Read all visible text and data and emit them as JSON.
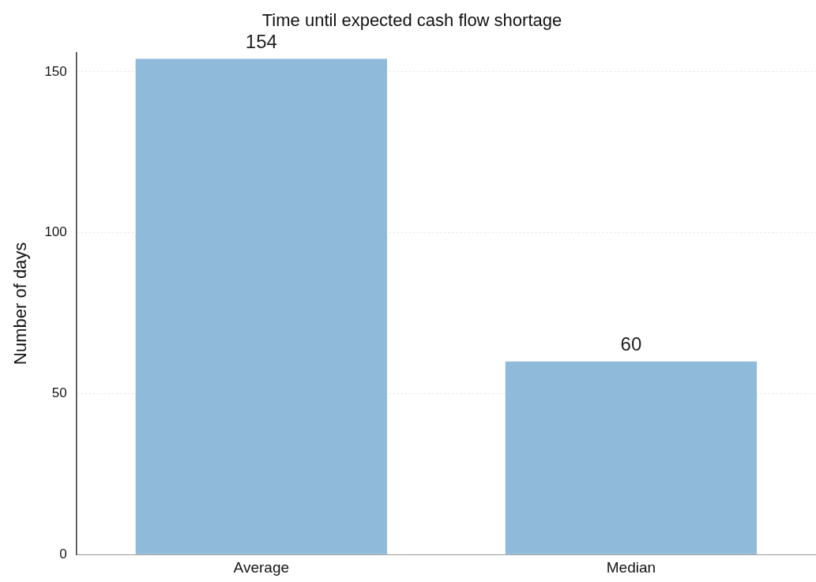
{
  "chart_data": {
    "type": "bar",
    "title": "Time until expected cash flow shortage",
    "ylabel": "Number of days",
    "categories": [
      "Average",
      "Median"
    ],
    "values": [
      154,
      60
    ],
    "color": "#8fbad9",
    "ylim": [
      0,
      156
    ],
    "yticks": [
      0,
      50,
      100,
      150
    ],
    "grid": "y",
    "data_labels": true,
    "legend": false
  }
}
